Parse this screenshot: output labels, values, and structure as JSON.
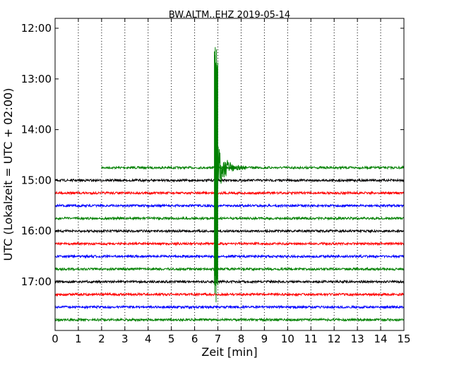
{
  "chart_data": {
    "type": "line",
    "title": "BW.ALTM..EHZ 2019-05-14",
    "xlabel": "Zeit  [min]",
    "ylabel": "UTC (Lokalzeit = UTC + 02:00)",
    "xlim": [
      0,
      15
    ],
    "x_ticks": [
      0,
      1,
      2,
      3,
      4,
      5,
      6,
      7,
      8,
      9,
      10,
      11,
      12,
      13,
      14,
      15
    ],
    "x_tick_labels": [
      "0",
      "1",
      "2",
      "3",
      "4",
      "5",
      "6",
      "7",
      "8",
      "9",
      "10",
      "11",
      "12",
      "13",
      "14",
      "15"
    ],
    "y_ticks": [
      "12:00",
      "13:00",
      "14:00",
      "15:00",
      "16:00",
      "17:00"
    ],
    "grid": "dotted vertical lines at each minute",
    "color_cycle": [
      "#008000",
      "#000000",
      "#ff0000",
      "#0000ff"
    ],
    "traces": [
      {
        "time": "14:45",
        "color": "#008000",
        "x_start": 2,
        "x_end": 15
      },
      {
        "time": "15:00",
        "color": "#000000",
        "x_start": 0,
        "x_end": 15
      },
      {
        "time": "15:15",
        "color": "#ff0000",
        "x_start": 0,
        "x_end": 15
      },
      {
        "time": "15:30",
        "color": "#0000ff",
        "x_start": 0,
        "x_end": 15
      },
      {
        "time": "15:45",
        "color": "#008000",
        "x_start": 0,
        "x_end": 15
      },
      {
        "time": "16:00",
        "color": "#000000",
        "x_start": 0,
        "x_end": 15
      },
      {
        "time": "16:15",
        "color": "#ff0000",
        "x_start": 0,
        "x_end": 15
      },
      {
        "time": "16:30",
        "color": "#0000ff",
        "x_start": 0,
        "x_end": 15
      },
      {
        "time": "16:45",
        "color": "#008000",
        "x_start": 0,
        "x_end": 15
      },
      {
        "time": "17:00",
        "color": "#000000",
        "x_start": 0,
        "x_end": 15
      },
      {
        "time": "17:15",
        "color": "#ff0000",
        "x_start": 0,
        "x_end": 15
      },
      {
        "time": "17:30",
        "color": "#0000ff",
        "x_start": 0,
        "x_end": 15
      },
      {
        "time": "17:45",
        "color": "#008000",
        "x_start": 0,
        "x_end": 15
      }
    ],
    "events": [
      {
        "x_start": 6.85,
        "x_end": 7.0,
        "note": "large-amplitude burst",
        "y_top": "12:15",
        "y_bottom": "17:25"
      }
    ]
  }
}
